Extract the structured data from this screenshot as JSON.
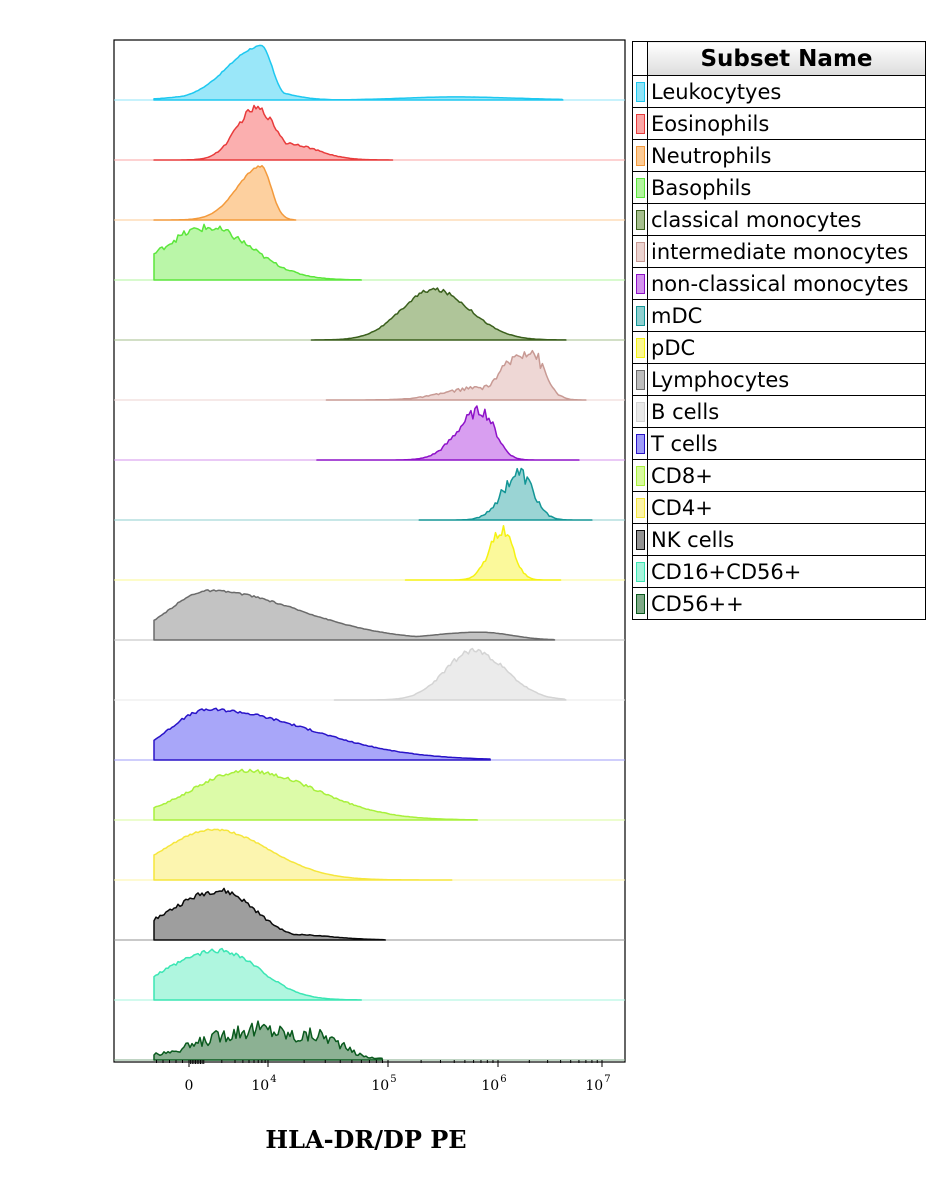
{
  "chart_data": {
    "type": "area",
    "subtype": "stacked-histogram-overlay",
    "xlabel": "HLA-DR/DP PE",
    "x_scale": "biexponential",
    "x_ticks": [
      {
        "value": 0,
        "base": "0",
        "exp": ""
      },
      {
        "value": 10000,
        "base": "10",
        "exp": "4"
      },
      {
        "value": 100000,
        "base": "10",
        "exp": "5"
      },
      {
        "value": 1000000,
        "base": "10",
        "exp": "6"
      },
      {
        "value": 10000000,
        "base": "10",
        "exp": "7"
      }
    ],
    "legend": {
      "header": "Subset Name",
      "placement": "right"
    },
    "series": [
      {
        "name": "Leukocytyes",
        "color": "#1ec8f0",
        "fill": "#8fe4f8",
        "start": 0,
        "end": 4200000,
        "peaks": [
          {
            "x": 7800,
            "h": 0.96,
            "wl": 0.34,
            "wr": 0.11
          },
          {
            "x": 5500,
            "h": 0.22,
            "wl": 0.45,
            "wr": 0.3
          },
          {
            "x": 400000,
            "h": 0.055,
            "wl": 0.5,
            "wr": 0.6
          }
        ],
        "noise": 0.02
      },
      {
        "name": "Eosinophils",
        "color": "#e83c3c",
        "fill": "#fba6a6",
        "start": 0,
        "end": 110000,
        "peaks": [
          {
            "x": 6500,
            "h": 0.92,
            "wl": 0.2,
            "wr": 0.2
          },
          {
            "x": 14000,
            "h": 0.3,
            "wl": 0.3,
            "wr": 0.3
          }
        ],
        "noise": 0.07
      },
      {
        "name": "Neutrophils",
        "color": "#f39a3c",
        "fill": "#fdcb95",
        "start": 0,
        "end": 17000,
        "peaks": [
          {
            "x": 7800,
            "h": 0.96,
            "wl": 0.24,
            "wr": 0.1
          }
        ],
        "noise": 0.02
      },
      {
        "name": "Basophils",
        "color": "#5ce63c",
        "fill": "#b2f59e",
        "start": 0,
        "end": 60000,
        "peaks": [
          {
            "x": 1100,
            "h": 0.93,
            "wl": 0.45,
            "wr": 0.45
          }
        ],
        "noise": 0.08
      },
      {
        "name": "classical monocytes",
        "color": "#3a5f1c",
        "fill": "#a6bf8e",
        "start": 45000,
        "end": 4500000,
        "peaks": [
          {
            "x": 260000,
            "h": 0.9,
            "wl": 0.32,
            "wr": 0.36
          }
        ],
        "noise": 0.04
      },
      {
        "name": "intermediate monocytes",
        "color": "#c89a94",
        "fill": "#ecd3d0",
        "start": 60000,
        "end": 7000000,
        "peaks": [
          {
            "x": 2000000,
            "h": 0.9,
            "wl": 0.26,
            "wr": 0.14
          },
          {
            "x": 700000,
            "h": 0.22,
            "wl": 0.35,
            "wr": 0.3
          }
        ],
        "noise": 0.16
      },
      {
        "name": "non-classical monocytes",
        "color": "#8e12c8",
        "fill": "#d493ee",
        "start": 50000,
        "end": 6000000,
        "peaks": [
          {
            "x": 700000,
            "h": 0.88,
            "wl": 0.23,
            "wr": 0.14
          }
        ],
        "noise": 0.12
      },
      {
        "name": "mDC",
        "color": "#149696",
        "fill": "#8fcfcf",
        "start": 400000,
        "end": 8000000,
        "peaks": [
          {
            "x": 1600000,
            "h": 0.82,
            "wl": 0.17,
            "wr": 0.14
          }
        ],
        "noise": 0.18
      },
      {
        "name": "pDC",
        "color": "#f5f212",
        "fill": "#fbf890",
        "start": 300000,
        "end": 4000000,
        "peaks": [
          {
            "x": 1100000,
            "h": 0.88,
            "wl": 0.13,
            "wr": 0.11
          }
        ],
        "noise": 0.12
      },
      {
        "name": "Lymphocytes",
        "color": "#6b6b6b",
        "fill": "#bdbdbd",
        "start": 0,
        "end": 3500000,
        "peaks": [
          {
            "x": 1200,
            "h": 0.88,
            "wl": 0.4,
            "wr": 0.9
          },
          {
            "x": 700000,
            "h": 0.14,
            "wl": 0.5,
            "wr": 0.3
          }
        ],
        "noise": 0.02
      },
      {
        "name": "B cells",
        "color": "#d4d4d4",
        "fill": "#e9e9e9",
        "start": 70000,
        "end": 4500000,
        "peaks": [
          {
            "x": 600000,
            "h": 0.88,
            "wl": 0.28,
            "wr": 0.32
          }
        ],
        "noise": 0.06
      },
      {
        "name": "T cells",
        "color": "#2a14c8",
        "fill": "#9f9cf8",
        "start": 0,
        "end": 850000,
        "peaks": [
          {
            "x": 1200,
            "h": 0.9,
            "wl": 0.4,
            "wr": 1.0
          }
        ],
        "noise": 0.03
      },
      {
        "name": "CD8+",
        "color": "#a8f03c",
        "fill": "#d8fb9e",
        "start": 0,
        "end": 650000,
        "peaks": [
          {
            "x": 4500,
            "h": 0.88,
            "wl": 0.55,
            "wr": 0.7
          },
          {
            "x": 28000,
            "h": 0.35,
            "wl": 0.3,
            "wr": 0.4
          }
        ],
        "noise": 0.04
      },
      {
        "name": "CD4+",
        "color": "#f5e63c",
        "fill": "#fcf4a6",
        "start": 0,
        "end": 380000,
        "peaks": [
          {
            "x": 1500,
            "h": 0.9,
            "wl": 0.5,
            "wr": 0.55
          }
        ],
        "noise": 0.02
      },
      {
        "name": "NK cells",
        "color": "#0a0a0a",
        "fill": "#939393",
        "start": 0,
        "end": 95000,
        "peaks": [
          {
            "x": 1900,
            "h": 0.88,
            "wl": 0.5,
            "wr": 0.35
          },
          {
            "x": 15000,
            "h": 0.1,
            "wl": 0.4,
            "wr": 0.4
          }
        ],
        "noise": 0.06
      },
      {
        "name": "CD16+CD56+",
        "color": "#3ce6b4",
        "fill": "#a6f5dc",
        "start": 0,
        "end": 60000,
        "peaks": [
          {
            "x": 1900,
            "h": 0.88,
            "wl": 0.55,
            "wr": 0.4
          }
        ],
        "noise": 0.05
      },
      {
        "name": "CD56++",
        "color": "#0a5a1e",
        "fill": "#7fa987",
        "start": 0,
        "end": 90000,
        "peaks": [
          {
            "x": 7000,
            "h": 0.55,
            "wl": 0.55,
            "wr": 0.5
          },
          {
            "x": 25000,
            "h": 0.45,
            "wl": 0.4,
            "wr": 0.25
          }
        ],
        "noise": 0.3
      }
    ]
  }
}
